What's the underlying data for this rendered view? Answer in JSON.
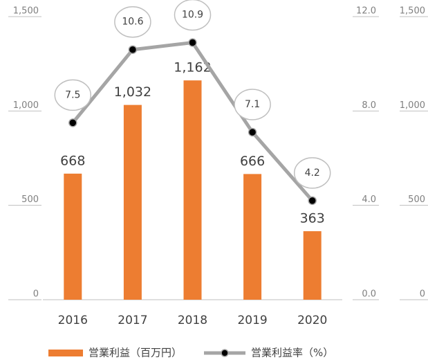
{
  "chart_data": {
    "type": "bar",
    "categories": [
      "2016",
      "2017",
      "2018",
      "2019",
      "2020"
    ],
    "series": [
      {
        "name": "営業利益（百万円）",
        "type": "bar",
        "color": "#ed7d31",
        "values": [
          668,
          1032,
          1162,
          666,
          363
        ],
        "value_labels": [
          "668",
          "1,032",
          "1,162",
          "666",
          "363"
        ]
      },
      {
        "name": "営業利益率（%）",
        "type": "line",
        "axis": "y2",
        "color": "#a5a5a5",
        "values": [
          7.5,
          10.6,
          10.9,
          7.1,
          4.2
        ]
      }
    ],
    "ylim": [
      0,
      1500
    ],
    "yticks": [
      0,
      500,
      {
        "value": 1000,
        "label": "1,000"
      },
      {
        "value": 1500,
        "label": "1,500"
      }
    ],
    "y2lim": [
      0,
      12
    ],
    "y2ticks": [
      {
        "value": 0,
        "label": "0.0"
      },
      {
        "value": 4,
        "label": "4.0"
      },
      {
        "value": 8,
        "label": "8.0"
      },
      {
        "value": 12,
        "label": "12.0"
      }
    ],
    "y3lim": [
      0,
      1500
    ],
    "y3ticks": [
      0,
      500,
      {
        "value": 1000,
        "label": "1,000"
      },
      {
        "value": 1500,
        "label": "1,500"
      }
    ],
    "legend": "bottom"
  }
}
